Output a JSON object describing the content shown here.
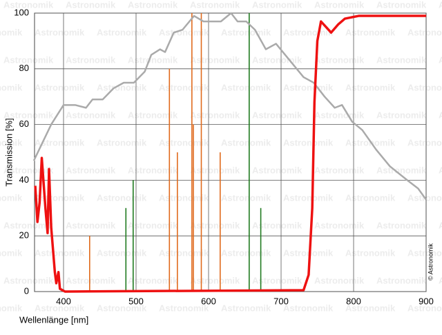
{
  "chart_data": {
    "type": "line",
    "xlabel": "Wellenlänge [nm]",
    "ylabel": "Transmission [%]",
    "watermark": "Astronomik",
    "copyright": "© Astronomik",
    "xlim": [
      360,
      900
    ],
    "ylim": [
      0,
      100
    ],
    "xticks": [
      400,
      500,
      600,
      700,
      800,
      900
    ],
    "yticks": [
      0,
      20,
      40,
      60,
      80,
      100
    ],
    "grid": true,
    "series": [
      {
        "color": "#aaaaaa",
        "style": "line",
        "x": [
          359,
          383,
          400,
          416,
          431,
          440,
          454,
          469,
          483,
          497,
          512,
          521,
          533,
          540,
          552,
          564,
          580,
          593,
          607,
          617,
          631,
          640,
          652,
          664,
          679,
          693,
          712,
          731,
          745,
          760,
          774,
          784,
          798,
          812,
          831,
          850,
          874,
          889,
          900
        ],
        "values": [
          47,
          60,
          67,
          67,
          66,
          69,
          69,
          73,
          75,
          75,
          79,
          85,
          87,
          86,
          93,
          94,
          99,
          97,
          97,
          97,
          100,
          97,
          97,
          94,
          87,
          89,
          83,
          77,
          75,
          70,
          66,
          67,
          61,
          58,
          51,
          45,
          40,
          37,
          33
        ]
      },
      {
        "color": "#ee1111",
        "style": "line",
        "x": [
          361,
          364,
          367,
          370,
          375,
          378,
          380,
          383,
          388,
          390,
          393,
          395,
          402,
          731,
          738,
          743,
          746,
          750,
          755,
          762,
          769,
          779,
          788,
          807,
          846,
          884,
          900
        ],
        "values": [
          38,
          25,
          32,
          48,
          30,
          21,
          44,
          23,
          7,
          3,
          7,
          1,
          0,
          0.5,
          6,
          30,
          68,
          90,
          97,
          95,
          93,
          96,
          98,
          99,
          99,
          99,
          99
        ]
      },
      {
        "color": "#e06a1c",
        "style": "stem",
        "x": [
          436,
          546,
          557,
          577,
          579,
          590,
          616
        ],
        "values": [
          20,
          80,
          50,
          100,
          60,
          100,
          50
        ]
      },
      {
        "color": "#1f7a1f",
        "style": "stem",
        "x": [
          486,
          496,
          656,
          672
        ],
        "values": [
          30,
          40,
          100,
          30
        ]
      }
    ]
  }
}
